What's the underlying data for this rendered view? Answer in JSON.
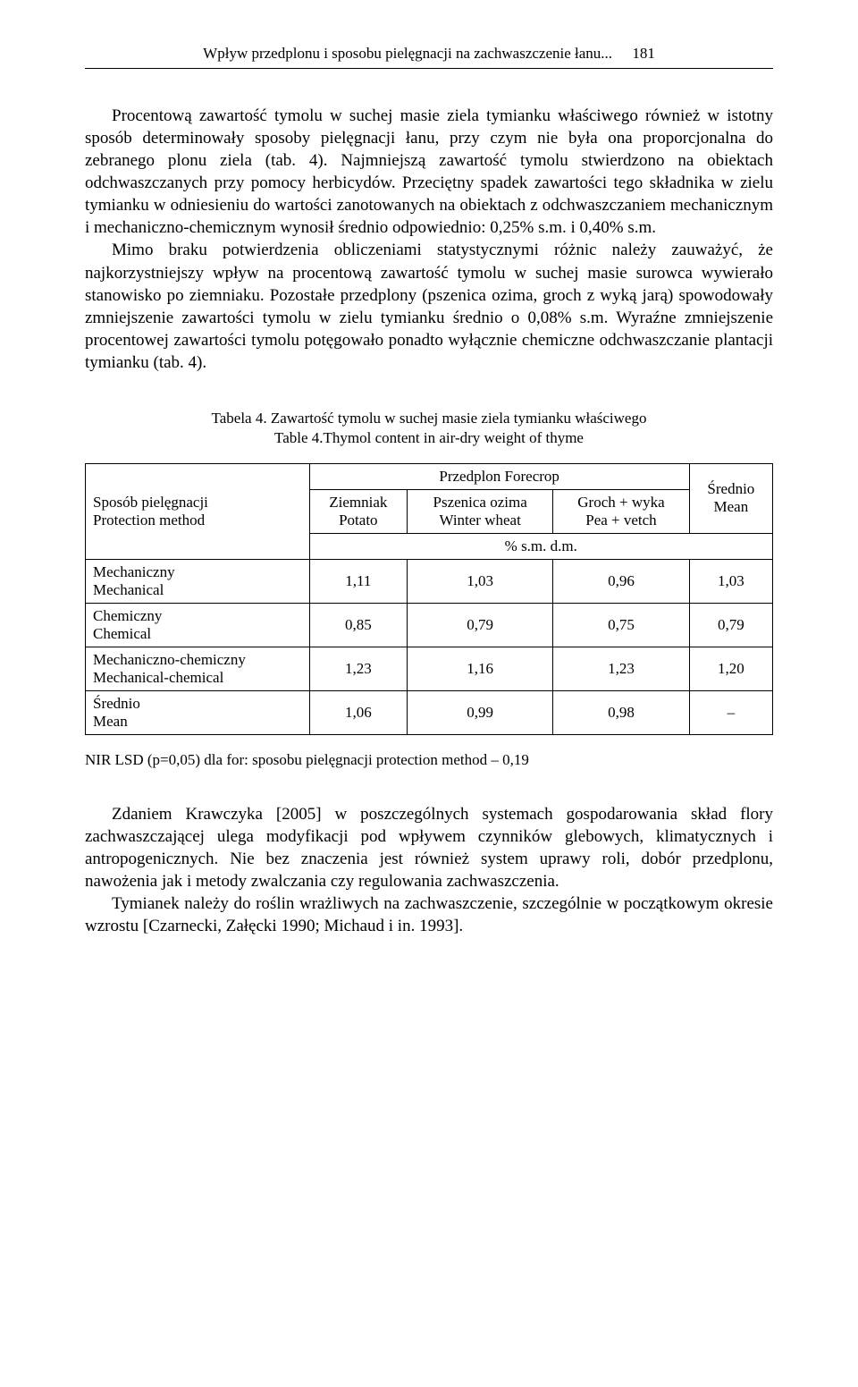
{
  "header": {
    "running_title": "Wpływ przedplonu i sposobu pielęgnacji na zachwaszczenie łanu...",
    "page_number": "181"
  },
  "paragraphs": {
    "p1": "Procentową zawartość tymolu w suchej masie ziela tymianku właściwego również w istotny sposób determinowały sposoby pielęgnacji łanu, przy czym nie była ona proporcjonalna do zebranego plonu ziela (tab. 4). Najmniejszą zawartość tymolu stwierdzono na obiektach odchwaszczanych przy pomocy herbicydów. Przeciętny spadek zawartości tego składnika w zielu tymianku w odniesieniu do wartości zanotowanych na obiektach z odchwaszczaniem mechanicznym i mechaniczno-chemicznym wynosił średnio odpowiednio: 0,25% s.m. i 0,40% s.m.",
    "p2": "Mimo braku potwierdzenia obliczeniami statystycznymi różnic należy zauważyć, że najkorzystniejszy wpływ na procentową zawartość tymolu w suchej masie surowca wywierało stanowisko po ziemniaku. Pozostałe przedplony (pszenica ozima, groch z wyką jarą) spowodowały zmniejszenie zawartości tymolu w zielu tymianku średnio o 0,08% s.m. Wyraźne zmniejszenie procentowej zawartości tymolu potęgowało ponadto wyłącznie chemiczne odchwaszczanie plantacji tymianku (tab. 4).",
    "p3": "Zdaniem Krawczyka [2005] w poszczególnych systemach gospodarowania skład flory zachwaszczającej ulega modyfikacji pod wpływem czynników glebowych, klimatycznych i antropogenicznych. Nie bez znaczenia jest również system uprawy roli, dobór przedplonu, nawożenia jak i metody zwalczania czy regulowania zachwaszczenia.",
    "p4": "Tymianek należy do roślin wrażliwych na zachwaszczenie, szczególnie w początkowym okresie wzrostu [Czarnecki, Załęcki 1990; Michaud i in. 1993]."
  },
  "table": {
    "caption": "Tabela 4. Zawartość tymolu w suchej masie ziela tymianku właściwego",
    "subcaption": "Table 4.Thymol content in air-dry weight of thyme",
    "row_header": {
      "label_pl": "Sposób pielęgnacji",
      "label_en": "Protection method"
    },
    "forecrop_header": "Przedplon  Forecrop",
    "columns": {
      "c1_pl": "Ziemniak",
      "c1_en": "Potato",
      "c2_pl": "Pszenica ozima",
      "c2_en": "Winter wheat",
      "c3_pl": "Groch + wyka",
      "c3_en": "Pea + vetch",
      "mean_pl": "Średnio",
      "mean_en": "Mean"
    },
    "unit_row": "% s.m. d.m.",
    "rows": [
      {
        "label_pl": "Mechaniczny",
        "label_en": "Mechanical",
        "v1": "1,11",
        "v2": "1,03",
        "v3": "0,96",
        "mean": "1,03"
      },
      {
        "label_pl": "Chemiczny",
        "label_en": "Chemical",
        "v1": "0,85",
        "v2": "0,79",
        "v3": "0,75",
        "mean": "0,79"
      },
      {
        "label_pl": "Mechaniczno-chemiczny",
        "label_en": "Mechanical-chemical",
        "v1": "1,23",
        "v2": "1,16",
        "v3": "1,23",
        "mean": "1,20"
      },
      {
        "label_pl": "Średnio",
        "label_en": "Mean",
        "v1": "1,06",
        "v2": "0,99",
        "v3": "0,98",
        "mean": "–"
      }
    ],
    "nir_note": "NIR LSD (p=0,05) dla for: sposobu pielęgnacji protection method – 0,19"
  }
}
